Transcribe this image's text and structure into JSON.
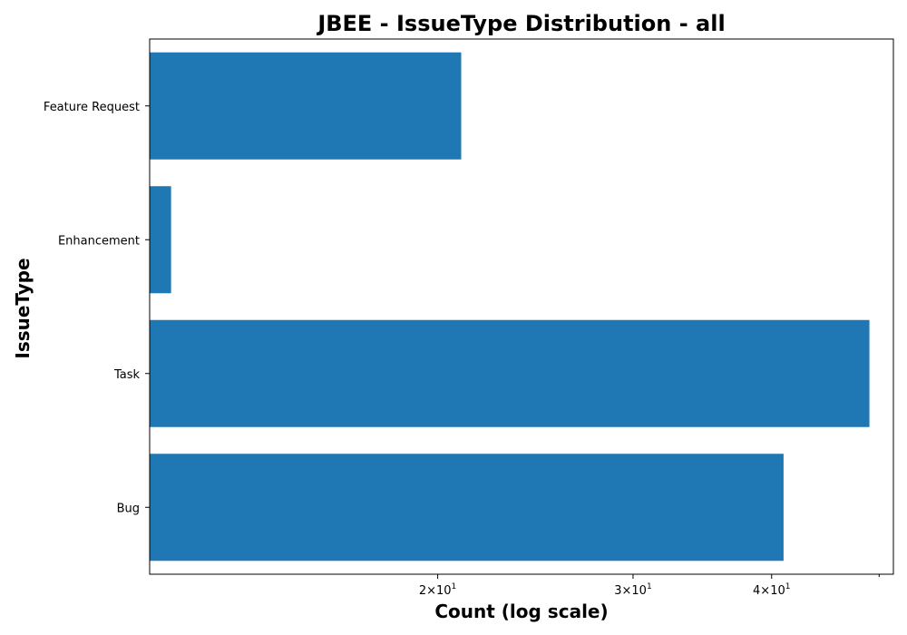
{
  "chart_data": {
    "type": "bar",
    "orientation": "horizontal",
    "title": "JBEE - IssueType Distribution - all",
    "xlabel": "Count (log scale)",
    "ylabel": "IssueType",
    "x_scale": "log",
    "xlim": [
      11,
      51.5
    ],
    "categories": [
      "Bug",
      "Task",
      "Enhancement",
      "Feature Request"
    ],
    "values": [
      41,
      49,
      11.5,
      21
    ],
    "x_ticks": [
      {
        "value": 20,
        "mantissa": "2",
        "base": "10",
        "exp": "1"
      },
      {
        "value": 30,
        "mantissa": "3",
        "base": "10",
        "exp": "1"
      },
      {
        "value": 40,
        "mantissa": "4",
        "base": "10",
        "exp": "1"
      }
    ],
    "minor_tick_values": [
      50
    ],
    "bar_color": "#1f77b4",
    "grid": false,
    "legend": "none"
  }
}
